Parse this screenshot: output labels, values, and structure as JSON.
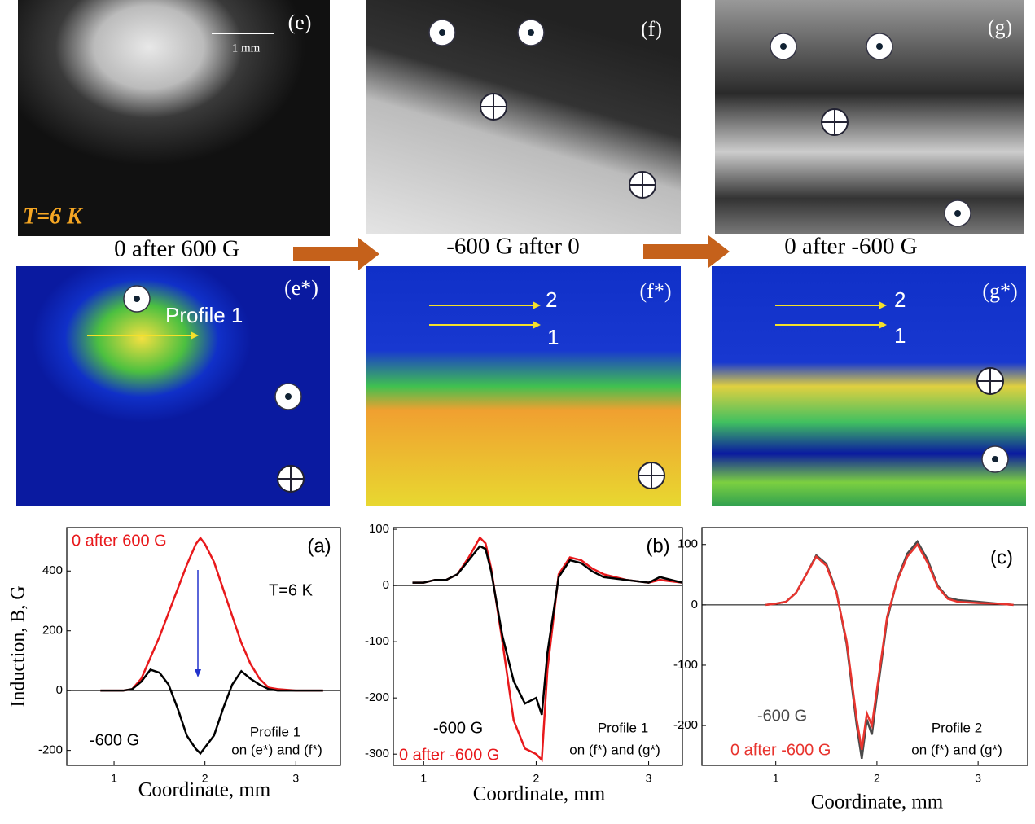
{
  "images": {
    "top": [
      {
        "label": "(e)",
        "scale": "1 mm",
        "temperature": "T=6 K"
      },
      {
        "label": "(f)"
      },
      {
        "label": "(g)"
      }
    ],
    "captions": [
      "0 after 600 G",
      "-600 G after 0",
      "0 after -600 G"
    ],
    "bottom": [
      {
        "label": "(e*)",
        "profile": "Profile 1"
      },
      {
        "label": "(f*)",
        "markers": [
          "2",
          "1"
        ]
      },
      {
        "label": "(g*)",
        "markers": [
          "2",
          "1"
        ]
      }
    ]
  },
  "chart_data": [
    {
      "type": "line",
      "panel": "(a)",
      "xlabel": "Coordinate, mm",
      "ylabel": "Induction, B, G",
      "annotations": [
        "T=6 K",
        "Profile 1",
        "on (e*) and (f*)"
      ],
      "x": [
        0.85,
        1.0,
        1.1,
        1.2,
        1.3,
        1.4,
        1.5,
        1.6,
        1.7,
        1.8,
        1.9,
        1.95,
        2.0,
        2.1,
        2.2,
        2.3,
        2.4,
        2.5,
        2.6,
        2.7,
        2.8,
        3.0,
        3.3
      ],
      "series": [
        {
          "name": "0 after 600 G",
          "color": "#e8191c",
          "values": [
            0,
            0,
            0,
            5,
            40,
            110,
            180,
            260,
            340,
            420,
            490,
            510,
            490,
            430,
            340,
            250,
            160,
            90,
            40,
            10,
            5,
            0,
            0
          ]
        },
        {
          "name": "-600 G",
          "color": "#000000",
          "values": [
            0,
            0,
            0,
            5,
            30,
            70,
            60,
            20,
            -60,
            -150,
            -195,
            -210,
            -190,
            -150,
            -60,
            20,
            65,
            40,
            20,
            5,
            0,
            0,
            0
          ]
        }
      ],
      "xlim": [
        0.48,
        3.49
      ],
      "xticks": [
        1,
        2,
        3
      ],
      "ylim": [
        -250,
        545
      ],
      "yticks": [
        -200,
        0,
        200,
        400
      ]
    },
    {
      "type": "line",
      "panel": "(b)",
      "xlabel": "Coordinate, mm",
      "annotations": [
        "Profile 1",
        "on (f*) and (g*)"
      ],
      "x": [
        0.9,
        1.0,
        1.1,
        1.2,
        1.3,
        1.4,
        1.5,
        1.55,
        1.6,
        1.7,
        1.8,
        1.9,
        2.0,
        2.05,
        2.1,
        2.2,
        2.3,
        2.4,
        2.5,
        2.6,
        2.8,
        3.0,
        3.1,
        3.3
      ],
      "series": [
        {
          "name": "0 after -600 G",
          "color": "#e8191c",
          "values": [
            5,
            5,
            10,
            10,
            20,
            50,
            85,
            75,
            30,
            -100,
            -240,
            -290,
            -300,
            -310,
            -150,
            20,
            50,
            45,
            30,
            20,
            10,
            5,
            10,
            5
          ]
        },
        {
          "name": "-600 G",
          "color": "#000000",
          "values": [
            5,
            5,
            10,
            10,
            20,
            45,
            70,
            65,
            25,
            -90,
            -170,
            -210,
            -200,
            -230,
            -120,
            15,
            45,
            40,
            25,
            15,
            10,
            5,
            15,
            5
          ]
        }
      ],
      "xlim": [
        0.73,
        3.3
      ],
      "xticks": [
        1,
        2,
        3
      ],
      "ylim": [
        -320,
        103
      ],
      "yticks": [
        -300,
        -200,
        -100,
        0,
        100
      ]
    },
    {
      "type": "line",
      "panel": "(c)",
      "xlabel": "Coordinate, mm",
      "annotations": [
        "Profile 2",
        "on (f*) and (g*)"
      ],
      "x": [
        0.9,
        1.0,
        1.1,
        1.2,
        1.3,
        1.4,
        1.5,
        1.6,
        1.7,
        1.8,
        1.85,
        1.9,
        1.95,
        2.0,
        2.1,
        2.2,
        2.3,
        2.4,
        2.5,
        2.6,
        2.7,
        2.8,
        3.0,
        3.2,
        3.35
      ],
      "series": [
        {
          "name": "-600 G",
          "color": "#4a4a4a",
          "values": [
            0,
            2,
            5,
            20,
            50,
            82,
            68,
            22,
            -65,
            -200,
            -255,
            -190,
            -215,
            -150,
            -25,
            42,
            85,
            105,
            75,
            32,
            12,
            8,
            5,
            2,
            0
          ]
        },
        {
          "name": "0 after -600 G",
          "color": "#e8342e",
          "values": [
            0,
            2,
            5,
            20,
            50,
            80,
            65,
            20,
            -60,
            -190,
            -240,
            -180,
            -200,
            -140,
            -20,
            40,
            80,
            100,
            70,
            30,
            10,
            5,
            3,
            2,
            0
          ]
        }
      ],
      "xlim": [
        0.27,
        3.49
      ],
      "xticks": [
        1,
        2,
        3
      ],
      "ylim": [
        -266,
        128
      ],
      "yticks": [
        -200,
        -100,
        0,
        100
      ]
    }
  ]
}
